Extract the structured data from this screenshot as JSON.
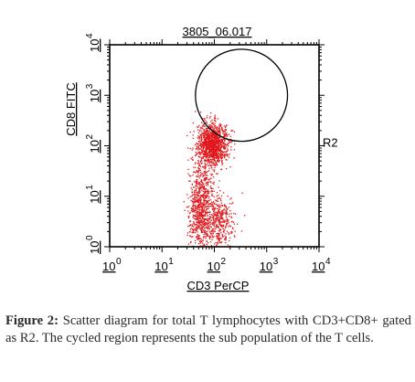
{
  "chart_data": {
    "type": "scatter",
    "title": "3805_06.017",
    "xlabel": "CD3 PerCP",
    "ylabel": "CD8 FITC",
    "x_scale": "log",
    "y_scale": "log",
    "xlim": [
      1,
      10000
    ],
    "ylim": [
      1,
      10000
    ],
    "x_ticks": [
      "10",
      "10",
      "10",
      "10",
      "10"
    ],
    "x_tick_exponents": [
      "0",
      "1",
      "2",
      "3",
      "4"
    ],
    "y_ticks": [
      "10",
      "10",
      "10",
      "10",
      "10"
    ],
    "y_tick_exponents": [
      "0",
      "1",
      "2",
      "3",
      "4"
    ],
    "point_color": "#e0181c",
    "clusters": [
      {
        "center_x": 90,
        "center_y": 110,
        "spread_log_x": 0.14,
        "spread_log_y": 0.2,
        "count": 1300
      },
      {
        "center_x": 52,
        "center_y": 5,
        "spread_log_x": 0.11,
        "spread_log_y": 0.4,
        "count": 650
      },
      {
        "center_x": 120,
        "center_y": 3.2,
        "spread_log_x": 0.14,
        "spread_log_y": 0.28,
        "count": 420
      },
      {
        "center_x": 60,
        "center_y": 20,
        "spread_log_x": 0.12,
        "spread_log_y": 0.25,
        "count": 180
      }
    ],
    "gate": {
      "name": "R2",
      "shape": "circle",
      "center": [
        330,
        1000
      ],
      "radius_decades": 0.88
    },
    "grid": false,
    "legend": "none"
  },
  "caption": {
    "label": "Figure 2:",
    "text": " Scatter diagram for total T lymphocytes with CD3+CD8+ gated as R2. The cycled region represents the sub population of the T cells."
  }
}
